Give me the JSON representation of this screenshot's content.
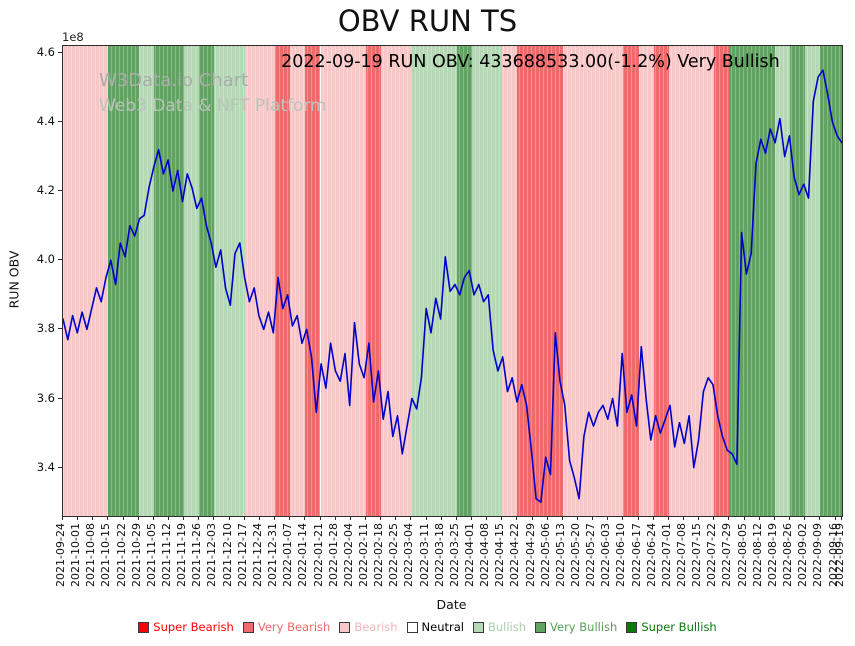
{
  "chart_data": {
    "type": "line",
    "title": "OBV RUN TS",
    "annotation": "2022-09-19 RUN OBV: 433688533.00(-1.2%) Very Bullish",
    "watermark_line1": "W3Data.io Chart",
    "watermark_line2": "Web3 Data & NFT Platform",
    "xlabel": "Date",
    "ylabel": "RUN OBV",
    "y_offset_label": "1e8",
    "values_unit": "1e8",
    "ylim": [
      3.26,
      4.62
    ],
    "yticks": [
      3.4,
      3.6,
      3.8,
      4.0,
      4.2,
      4.4,
      4.6
    ],
    "xtick_labels": [
      "2021-09-24",
      "2021-10-01",
      "2021-10-08",
      "2021-10-15",
      "2021-10-22",
      "2021-10-29",
      "2021-11-05",
      "2021-11-12",
      "2021-11-19",
      "2021-11-26",
      "2021-12-03",
      "2021-12-10",
      "2021-12-17",
      "2021-12-24",
      "2021-12-31",
      "2022-01-07",
      "2022-01-14",
      "2022-01-21",
      "2022-01-28",
      "2022-02-04",
      "2022-02-11",
      "2022-02-18",
      "2022-02-25",
      "2022-03-04",
      "2022-03-11",
      "2022-03-18",
      "2022-03-25",
      "2022-04-01",
      "2022-04-08",
      "2022-04-15",
      "2022-04-22",
      "2022-04-29",
      "2022-05-06",
      "2022-05-13",
      "2022-05-20",
      "2022-05-27",
      "2022-06-03",
      "2022-06-10",
      "2022-06-17",
      "2022-06-24",
      "2022-07-01",
      "2022-07-08",
      "2022-07-15",
      "2022-07-22",
      "2022-07-29",
      "2022-08-05",
      "2022-08-12",
      "2022-08-19",
      "2022-08-26",
      "2022-09-02",
      "2022-09-09",
      "2022-09-16",
      "2022-09-19"
    ],
    "colors": {
      "super_bearish": "#ff0000",
      "very_bearish": "#ef6a6a",
      "bearish": "#f8c8c8",
      "neutral": "#ffffff",
      "bullish": "#b5d9b5",
      "very_bullish": "#61a361",
      "super_bullish": "#0b7a0b",
      "line": "#0000cd"
    },
    "legend": [
      {
        "label": "Super Bearish",
        "key": "super_bearish",
        "text_color": "#ff0000"
      },
      {
        "label": "Very Bearish",
        "key": "very_bearish",
        "text_color": "#ef6a6a"
      },
      {
        "label": "Bearish",
        "key": "bearish",
        "text_color": "#f3b6b6"
      },
      {
        "label": "Neutral",
        "key": "neutral",
        "text_color": "#000000"
      },
      {
        "label": "Bullish",
        "key": "bullish",
        "text_color": "#a9cfa9"
      },
      {
        "label": "Very Bullish",
        "key": "very_bullish",
        "text_color": "#55a055"
      },
      {
        "label": "Super Bullish",
        "key": "super_bullish",
        "text_color": "#0b7a0b"
      }
    ],
    "bands_by_week": [
      "bearish",
      "bearish",
      "bearish",
      "very_bullish",
      "very_bullish",
      "bullish",
      "very_bullish",
      "very_bullish",
      "bullish",
      "very_bullish",
      "bullish",
      "bullish",
      "bearish",
      "bearish",
      "very_bearish",
      "bearish",
      "very_bearish",
      "bearish",
      "bearish",
      "bearish",
      "very_bearish",
      "bearish",
      "bearish",
      "bullish",
      "bullish",
      "bullish",
      "very_bullish",
      "bullish",
      "bullish",
      "bearish",
      "very_bearish",
      "very_bearish",
      "very_bearish",
      "bearish",
      "bearish",
      "bearish",
      "bearish",
      "very_bearish",
      "bearish",
      "very_bearish",
      "bearish",
      "bearish",
      "bearish",
      "very_bearish",
      "very_bullish",
      "very_bullish",
      "very_bullish",
      "bullish",
      "very_bullish",
      "bullish",
      "very_bullish",
      "very_bullish"
    ],
    "values": [
      3.83,
      3.77,
      3.84,
      3.79,
      3.85,
      3.8,
      3.86,
      3.92,
      3.88,
      3.95,
      4.0,
      3.93,
      4.05,
      4.01,
      4.1,
      4.07,
      4.12,
      4.13,
      4.21,
      4.27,
      4.32,
      4.25,
      4.29,
      4.2,
      4.26,
      4.17,
      4.25,
      4.21,
      4.15,
      4.18,
      4.1,
      4.05,
      3.98,
      4.03,
      3.92,
      3.87,
      4.02,
      4.05,
      3.95,
      3.88,
      3.92,
      3.84,
      3.8,
      3.85,
      3.79,
      3.95,
      3.86,
      3.9,
      3.81,
      3.84,
      3.76,
      3.8,
      3.72,
      3.56,
      3.7,
      3.63,
      3.76,
      3.68,
      3.65,
      3.73,
      3.58,
      3.82,
      3.7,
      3.66,
      3.76,
      3.59,
      3.68,
      3.54,
      3.62,
      3.49,
      3.55,
      3.44,
      3.52,
      3.6,
      3.57,
      3.66,
      3.86,
      3.79,
      3.89,
      3.83,
      4.01,
      3.91,
      3.93,
      3.9,
      3.95,
      3.97,
      3.9,
      3.93,
      3.88,
      3.9,
      3.74,
      3.68,
      3.72,
      3.62,
      3.66,
      3.59,
      3.64,
      3.58,
      3.45,
      3.31,
      3.3,
      3.43,
      3.38,
      3.79,
      3.65,
      3.58,
      3.42,
      3.37,
      3.31,
      3.49,
      3.56,
      3.52,
      3.56,
      3.58,
      3.54,
      3.6,
      3.52,
      3.73,
      3.56,
      3.61,
      3.52,
      3.75,
      3.6,
      3.48,
      3.55,
      3.5,
      3.54,
      3.58,
      3.46,
      3.53,
      3.47,
      3.55,
      3.4,
      3.48,
      3.62,
      3.66,
      3.64,
      3.55,
      3.49,
      3.45,
      3.44,
      3.41,
      4.08,
      3.96,
      4.02,
      4.28,
      4.35,
      4.31,
      4.38,
      4.34,
      4.41,
      4.3,
      4.36,
      4.24,
      4.19,
      4.22,
      4.18,
      4.46,
      4.53,
      4.55,
      4.48,
      4.4,
      4.36,
      4.34
    ]
  }
}
